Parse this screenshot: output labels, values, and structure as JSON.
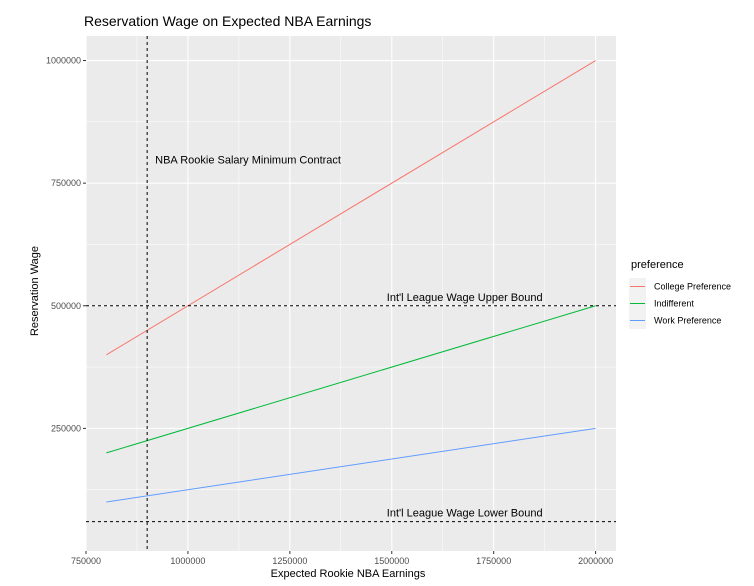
{
  "chart_data": {
    "type": "line",
    "title": "Reservation Wage on Expected NBA Earnings",
    "xlabel": "Expected Rookie NBA Earnings",
    "ylabel": "Reservation Wage",
    "xlim": [
      750000,
      2050000
    ],
    "ylim": [
      0,
      1050000
    ],
    "x_ticks": [
      750000,
      1000000,
      1250000,
      1500000,
      1750000,
      2000000
    ],
    "y_ticks": [
      250000,
      500000,
      750000,
      1000000
    ],
    "x_tick_labels": [
      "750000",
      "1000000",
      "1250000",
      "1500000",
      "1750000",
      "2000000"
    ],
    "y_tick_labels": [
      "250000",
      "500000",
      "750000",
      "1000000"
    ],
    "grid": true,
    "legend": {
      "title": "preference",
      "position": "right"
    },
    "series": [
      {
        "name": "College Preference",
        "color": "#F8766D",
        "x": [
          800000,
          2000000
        ],
        "y": [
          400000,
          1000000
        ]
      },
      {
        "name": "Indifferent",
        "color": "#00BA38",
        "x": [
          800000,
          2000000
        ],
        "y": [
          200000,
          500000
        ]
      },
      {
        "name": "Work Preference",
        "color": "#619CFF",
        "x": [
          800000,
          2000000
        ],
        "y": [
          100000,
          250000
        ]
      }
    ],
    "reference_lines": [
      {
        "orientation": "vertical",
        "value": 900000,
        "label": "NBA Rookie Salary Minimum Contract"
      },
      {
        "orientation": "horizontal",
        "value": 500000,
        "label": "Int'l League Wage Upper Bound"
      },
      {
        "orientation": "horizontal",
        "value": 60000,
        "label": "Int'l League Wage Lower Bound"
      }
    ]
  }
}
